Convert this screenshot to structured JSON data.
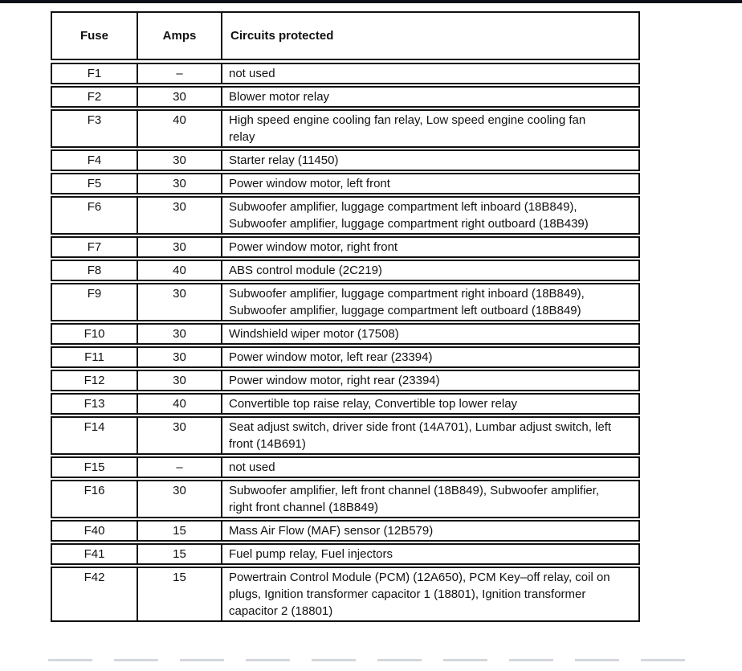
{
  "colors": {
    "top_bar": "#0d1017",
    "table_border": "#101010",
    "text": "#111111"
  },
  "table": {
    "headers": {
      "fuse": "Fuse",
      "amps": "Amps",
      "circuits": "Circuits protected"
    },
    "rows": [
      {
        "fuse": "F1",
        "amps": "–",
        "circuits": "not used"
      },
      {
        "fuse": "F2",
        "amps": "30",
        "circuits": "Blower motor relay"
      },
      {
        "fuse": "F3",
        "amps": "40",
        "circuits": "High speed engine cooling fan relay, Low speed engine cooling fan relay"
      },
      {
        "fuse": "F4",
        "amps": "30",
        "circuits": "Starter relay (11450)"
      },
      {
        "fuse": "F5",
        "amps": "30",
        "circuits": "Power window motor, left front"
      },
      {
        "fuse": "F6",
        "amps": "30",
        "circuits": "Subwoofer amplifier, luggage compartment left inboard (18B849), Subwoofer amplifier, luggage compartment right outboard (18B439)"
      },
      {
        "fuse": "F7",
        "amps": "30",
        "circuits": "Power window motor, right front"
      },
      {
        "fuse": "F8",
        "amps": "40",
        "circuits": "ABS control module (2C219)"
      },
      {
        "fuse": "F9",
        "amps": "30",
        "circuits": "Subwoofer amplifier, luggage compartment right inboard (18B849), Subwoofer amplifier, luggage compartment left outboard (18B849)"
      },
      {
        "fuse": "F10",
        "amps": "30",
        "circuits": "Windshield wiper motor (17508)"
      },
      {
        "fuse": "F11",
        "amps": "30",
        "circuits": "Power window motor, left rear (23394)"
      },
      {
        "fuse": "F12",
        "amps": "30",
        "circuits": "Power window motor, right rear (23394)"
      },
      {
        "fuse": "F13",
        "amps": "40",
        "circuits": "Convertible top raise relay, Convertible top lower relay"
      },
      {
        "fuse": "F14",
        "amps": "30",
        "circuits": "Seat adjust switch, driver side front (14A701), Lumbar adjust switch, left front (14B691)"
      },
      {
        "fuse": "F15",
        "amps": "–",
        "circuits": "not used"
      },
      {
        "fuse": "F16",
        "amps": "30",
        "circuits": "Subwoofer amplifier, left front channel (18B849), Subwoofer amplifier, right front channel (18B849)"
      },
      {
        "fuse": "F40",
        "amps": "15",
        "circuits": "Mass Air Flow (MAF) sensor (12B579)"
      },
      {
        "fuse": "F41",
        "amps": "15",
        "circuits": "Fuel pump relay, Fuel injectors"
      },
      {
        "fuse": "F42",
        "amps": "15",
        "circuits": "Powertrain Control Module (PCM) (12A650), PCM Key–off relay, coil on plugs, Ignition transformer capacitor 1 (18801), Ignition transformer capacitor 2 (18801)"
      }
    ]
  }
}
